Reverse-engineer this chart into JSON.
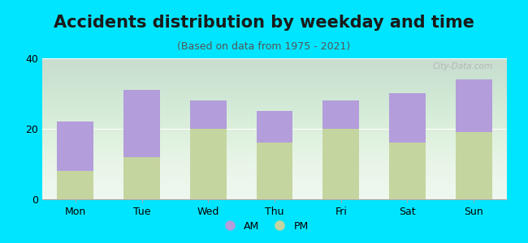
{
  "title": "Accidents distribution by weekday and time",
  "subtitle": "(Based on data from 1975 - 2021)",
  "categories": [
    "Mon",
    "Tue",
    "Wed",
    "Thu",
    "Fri",
    "Sat",
    "Sun"
  ],
  "am_values": [
    14,
    19,
    8,
    9,
    8,
    14,
    15
  ],
  "pm_values": [
    8,
    12,
    20,
    16,
    20,
    16,
    19
  ],
  "am_color": "#b39ddb",
  "pm_color": "#c5d5a0",
  "background_outer": "#00e5ff",
  "background_inner": "#eef7ee",
  "ylim": [
    0,
    40
  ],
  "yticks": [
    0,
    20,
    40
  ],
  "bar_width": 0.55,
  "title_fontsize": 15,
  "subtitle_fontsize": 9,
  "tick_fontsize": 9,
  "legend_fontsize": 9,
  "watermark_text": "City-Data.com"
}
